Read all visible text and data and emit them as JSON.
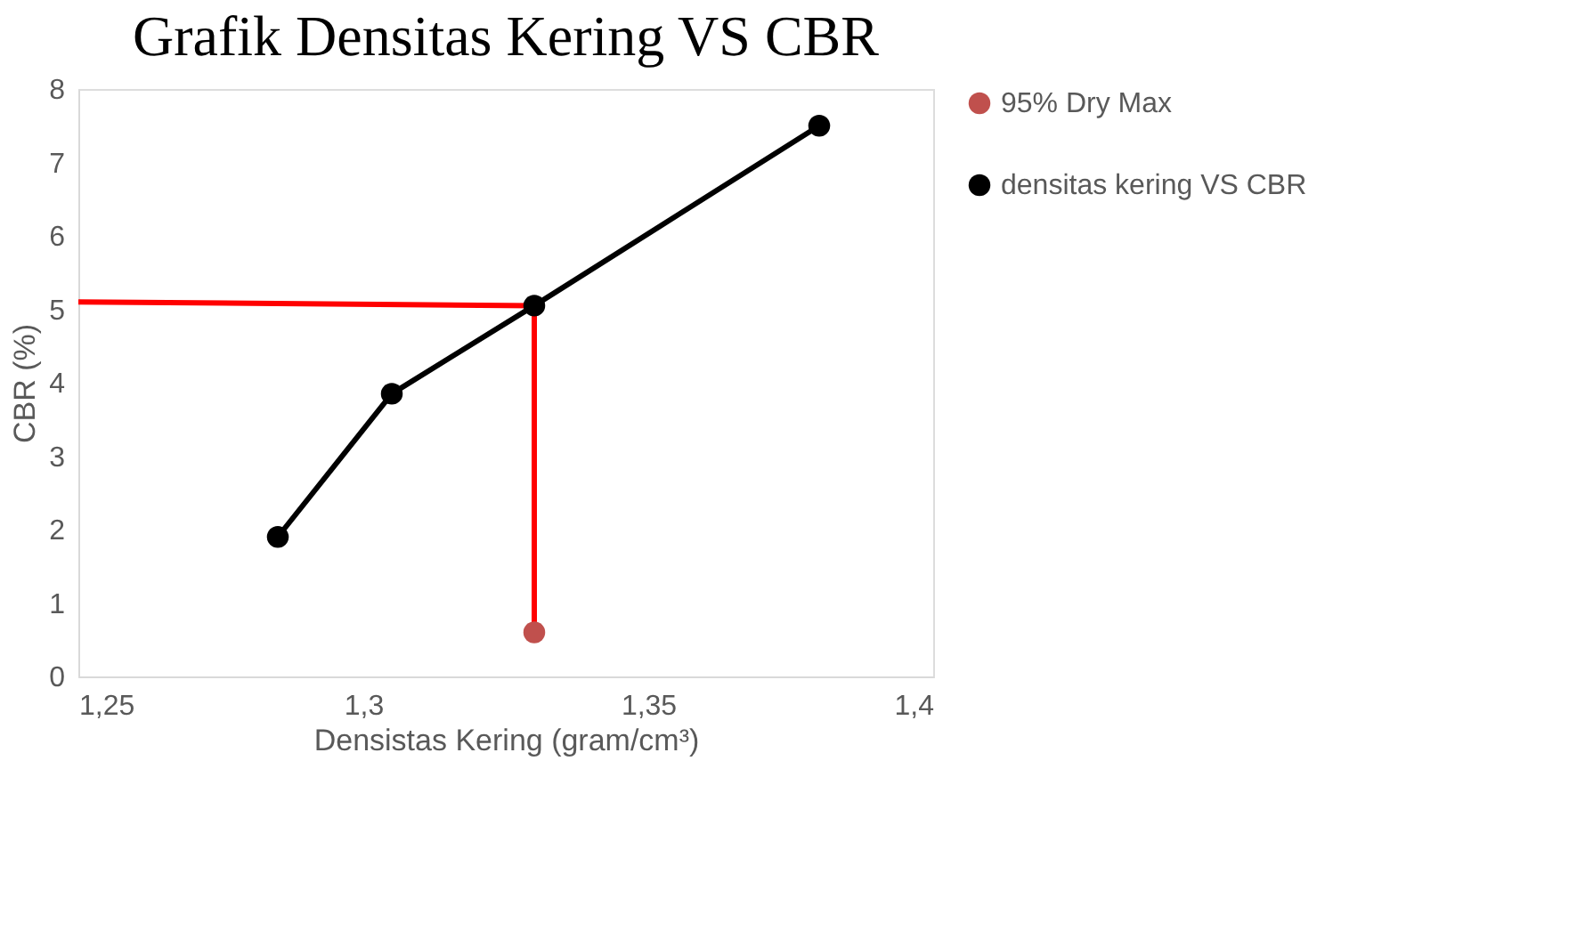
{
  "chart_data": {
    "type": "line",
    "title": "Grafik Densitas Kering VS CBR",
    "xlabel": "Densistas Kering (gram/cm³)",
    "ylabel": "CBR (%)",
    "series": [
      {
        "color": "#ff0000",
        "marker": "none",
        "x": [
          1.25,
          1.33,
          1.33
        ],
        "values": [
          5.1,
          5.05,
          0.6
        ]
      },
      {
        "name": "95% Dry Max",
        "color": "#c0504d",
        "type": "scatter",
        "marker": "circle",
        "x": [
          1.33
        ],
        "values": [
          0.6
        ]
      },
      {
        "name": "densitas kering VS CBR",
        "color": "#000000",
        "marker": "circle",
        "x": [
          1.285,
          1.305,
          1.33,
          1.38
        ],
        "values": [
          1.9,
          3.85,
          5.05,
          7.5
        ]
      }
    ],
    "xlim": [
      1.25,
      1.4
    ],
    "xticks": [
      {
        "value": 1.25,
        "label": "1,25"
      },
      {
        "value": 1.3,
        "label": "1,3"
      },
      {
        "value": 1.35,
        "label": "1,35"
      },
      {
        "value": 1.4,
        "label": "1,4"
      }
    ],
    "ylim": [
      0,
      8
    ],
    "yticks": [
      0,
      1,
      2,
      3,
      4,
      5,
      6,
      7,
      8
    ],
    "grid": false,
    "legend": "right"
  }
}
